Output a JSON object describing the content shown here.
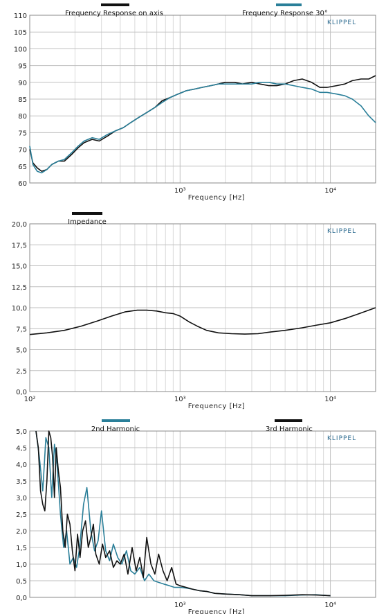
{
  "chart_data": [
    {
      "type": "line",
      "xlabel": "Frequency  [Hz]",
      "ylabel": "",
      "x_scale": "log",
      "xlim": [
        100,
        20000
      ],
      "ylim": [
        60,
        110
      ],
      "y_ticks": [
        "60",
        "65",
        "70",
        "75",
        "80",
        "85",
        "90",
        "95",
        "100",
        "105",
        "110"
      ],
      "x_ticks": [
        {
          "value": 1000,
          "label": "10³"
        },
        {
          "value": 10000,
          "label": "10⁴"
        }
      ],
      "brand": "KLIPPEL",
      "grid": true,
      "series": [
        {
          "name": "Frequency Response on axis",
          "color": "#111111",
          "x": [
            100,
            105,
            112,
            120,
            130,
            140,
            155,
            170,
            190,
            210,
            230,
            260,
            290,
            330,
            370,
            420,
            470,
            530,
            600,
            680,
            760,
            860,
            970,
            1100,
            1250,
            1400,
            1600,
            1800,
            2000,
            2300,
            2600,
            3000,
            3400,
            3900,
            4400,
            5000,
            5700,
            6500,
            7500,
            8500,
            9500,
            11000,
            12500,
            14000,
            16000,
            18000,
            20000
          ],
          "values": [
            70,
            66,
            64.5,
            63.5,
            64,
            65.5,
            66.5,
            66.5,
            68.5,
            70.5,
            72,
            73,
            72.5,
            74,
            75.5,
            76.5,
            78,
            79.5,
            81,
            82.5,
            84.5,
            85.5,
            86.5,
            87.5,
            88,
            88.5,
            89,
            89.5,
            90,
            90,
            89.5,
            90,
            89.5,
            89,
            89,
            89.5,
            90.5,
            91,
            90,
            88.5,
            88.5,
            89,
            89.5,
            90.5,
            91,
            91,
            92
          ]
        },
        {
          "name": "Frequency Response 30°",
          "color": "#2a7f99",
          "x": [
            100,
            105,
            112,
            120,
            130,
            140,
            155,
            170,
            190,
            210,
            230,
            260,
            290,
            330,
            370,
            420,
            470,
            530,
            600,
            680,
            760,
            860,
            970,
            1100,
            1250,
            1400,
            1600,
            1800,
            2000,
            2300,
            2600,
            3000,
            3400,
            3900,
            4400,
            5000,
            5700,
            6500,
            7500,
            8500,
            9500,
            11000,
            12500,
            14000,
            16000,
            18000,
            20000
          ],
          "values": [
            71,
            65.5,
            63.5,
            63,
            64,
            65.5,
            66.5,
            67,
            69,
            71,
            72.5,
            73.5,
            73,
            74.5,
            75.5,
            76.5,
            78,
            79.5,
            81,
            82.5,
            84,
            85.5,
            86.5,
            87.5,
            88,
            88.5,
            89,
            89.5,
            89.5,
            89.5,
            89.5,
            89.5,
            90,
            90,
            89.5,
            89.5,
            89,
            88.5,
            88,
            87,
            87,
            86.5,
            86,
            85,
            83,
            80,
            78
          ]
        }
      ]
    },
    {
      "type": "line",
      "xlabel": "Frequency  [Hz]",
      "ylabel": "",
      "x_scale": "log",
      "xlim": [
        100,
        20000
      ],
      "ylim": [
        0,
        20
      ],
      "y_ticks": [
        "0,0",
        "2,5",
        "5,0",
        "7,5",
        "10,0",
        "12,5",
        "15,0",
        "17,5",
        "20,0"
      ],
      "x_ticks": [
        {
          "value": 100,
          "label": "10²"
        },
        {
          "value": 1000,
          "label": "10³"
        },
        {
          "value": 10000,
          "label": "10⁴"
        }
      ],
      "brand": "KLIPPEL",
      "grid": true,
      "series": [
        {
          "name": "Impedance",
          "color": "#111111",
          "x": [
            100,
            130,
            170,
            220,
            280,
            350,
            430,
            520,
            600,
            700,
            800,
            900,
            1000,
            1150,
            1300,
            1500,
            1800,
            2200,
            2700,
            3300,
            4000,
            5000,
            6500,
            8000,
            10000,
            12500,
            15000,
            20000
          ],
          "values": [
            6.8,
            7.0,
            7.3,
            7.8,
            8.4,
            9.0,
            9.5,
            9.7,
            9.7,
            9.6,
            9.4,
            9.3,
            9.0,
            8.3,
            7.8,
            7.3,
            7.0,
            6.9,
            6.85,
            6.9,
            7.1,
            7.3,
            7.6,
            7.9,
            8.2,
            8.7,
            9.2,
            10.0
          ]
        }
      ]
    },
    {
      "type": "line",
      "xlabel": "Frequency  [Hz]",
      "ylabel": "",
      "x_scale": "log",
      "xlim": [
        100,
        20000
      ],
      "ylim": [
        0,
        5
      ],
      "y_ticks": [
        "0,0",
        "0,5",
        "1,0",
        "1,5",
        "2,0",
        "2,5",
        "3,0",
        "3,5",
        "4,0",
        "4,5",
        "5,0"
      ],
      "x_ticks": [
        {
          "value": 1000,
          "label": "10³"
        },
        {
          "value": 10000,
          "label": "10⁴"
        }
      ],
      "brand": "KLIPPEL",
      "grid": true,
      "series": [
        {
          "name": "2nd Harmonic",
          "color": "#2a7f99",
          "x": [
            110,
            116,
            122,
            128,
            134,
            140,
            146,
            152,
            160,
            168,
            176,
            185,
            195,
            205,
            215,
            228,
            240,
            255,
            270,
            285,
            300,
            320,
            340,
            360,
            385,
            410,
            440,
            470,
            500,
            540,
            580,
            620,
            670,
            720,
            780,
            850,
            920,
            1000,
            1100,
            1200,
            1350,
            1500,
            1700,
            2000,
            2500,
            3000,
            4000,
            5000,
            6500,
            8000,
            10000
          ],
          "values": [
            5.0,
            4.2,
            3.2,
            4.8,
            4.5,
            3.0,
            4.6,
            4.0,
            2.5,
            1.5,
            2.0,
            1.0,
            1.2,
            0.9,
            1.5,
            2.8,
            3.3,
            2.0,
            1.4,
            1.7,
            2.6,
            1.4,
            1.1,
            1.6,
            1.2,
            1.0,
            1.4,
            0.8,
            0.7,
            0.9,
            0.5,
            0.7,
            0.5,
            0.45,
            0.4,
            0.35,
            0.3,
            0.3,
            0.28,
            0.25,
            0.2,
            0.18,
            0.12,
            0.1,
            0.08,
            0.05,
            0.05,
            0.05,
            0.07,
            0.08,
            0.05
          ]
        },
        {
          "name": "3rd Harmonic",
          "color": "#111111",
          "x": [
            110,
            114,
            118,
            122,
            126,
            130,
            134,
            138,
            142,
            146,
            150,
            155,
            160,
            166,
            172,
            178,
            185,
            192,
            200,
            208,
            216,
            225,
            235,
            245,
            255,
            265,
            275,
            290,
            305,
            320,
            340,
            360,
            380,
            400,
            425,
            450,
            480,
            510,
            540,
            570,
            600,
            640,
            680,
            720,
            770,
            820,
            880,
            940,
            1000,
            1100,
            1200,
            1350,
            1500,
            1700,
            2000,
            2500,
            3000,
            4000,
            5000,
            6500,
            8000,
            10000
          ],
          "values": [
            5.0,
            4.5,
            3.2,
            2.8,
            2.6,
            3.5,
            5.0,
            4.8,
            4.2,
            3.0,
            4.5,
            3.8,
            3.3,
            2.0,
            1.5,
            2.5,
            2.2,
            1.4,
            0.8,
            1.9,
            1.2,
            2.0,
            2.3,
            1.5,
            1.8,
            2.2,
            1.3,
            1.0,
            1.6,
            1.2,
            1.4,
            0.9,
            1.1,
            1.0,
            1.3,
            0.7,
            1.5,
            0.8,
            1.2,
            0.6,
            1.8,
            1.0,
            0.7,
            1.3,
            0.8,
            0.5,
            0.9,
            0.4,
            0.35,
            0.3,
            0.25,
            0.2,
            0.18,
            0.12,
            0.1,
            0.08,
            0.05,
            0.05,
            0.06,
            0.08,
            0.07,
            0.05
          ]
        }
      ]
    }
  ]
}
